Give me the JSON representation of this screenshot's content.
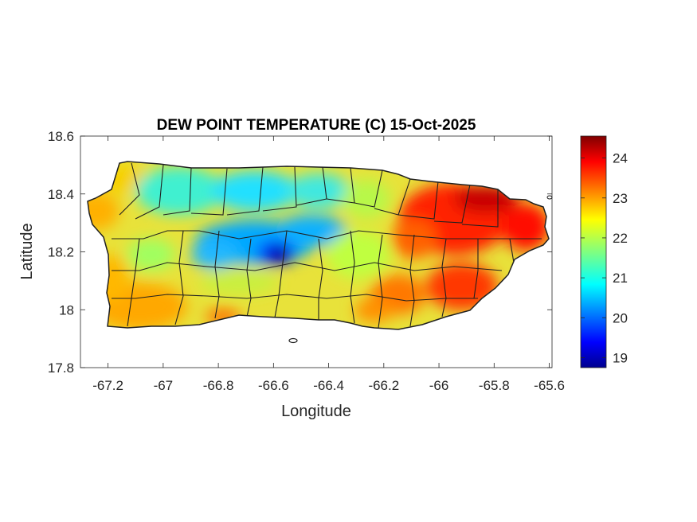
{
  "chart_data": {
    "type": "heatmap",
    "title": "DEW POINT TEMPERATURE (C) 15-Oct-2025",
    "xlabel": "Longitude",
    "ylabel": "Latitude",
    "xlim": [
      -67.3,
      -65.59
    ],
    "ylim": [
      17.8,
      18.6
    ],
    "x_ticks": [
      -67.2,
      -67,
      -66.8,
      -66.6,
      -66.4,
      -66.2,
      -66,
      -65.8,
      -65.6
    ],
    "x_tick_labels": [
      "-67.2",
      "-67",
      "-66.8",
      "-66.6",
      "-66.4",
      "-66.2",
      "-66",
      "-65.8",
      "-65.6"
    ],
    "y_ticks": [
      17.8,
      18,
      18.2,
      18.4,
      18.6
    ],
    "y_tick_labels": [
      "17.8",
      "18",
      "18.2",
      "18.4",
      "18.6"
    ],
    "colorbar": {
      "colormap": "jet",
      "clim": [
        18.75,
        24.55
      ],
      "ticks": [
        19,
        20,
        21,
        22,
        23,
        24
      ],
      "tick_labels": [
        "19",
        "20",
        "21",
        "22",
        "23",
        "24"
      ]
    },
    "field_regions": [
      {
        "region": "west coast",
        "approx_value": 22.8
      },
      {
        "region": "southwest coast",
        "approx_value": 23.0
      },
      {
        "region": "north-central interior",
        "approx_value": 20.8
      },
      {
        "region": "central mountains",
        "approx_value": 19.3
      },
      {
        "region": "south-central coast",
        "approx_value": 22.5
      },
      {
        "region": "east-central",
        "approx_value": 23.5
      },
      {
        "region": "northeast",
        "approx_value": 24.3
      },
      {
        "region": "southeast coast",
        "approx_value": 24.0
      }
    ],
    "grid": false
  }
}
